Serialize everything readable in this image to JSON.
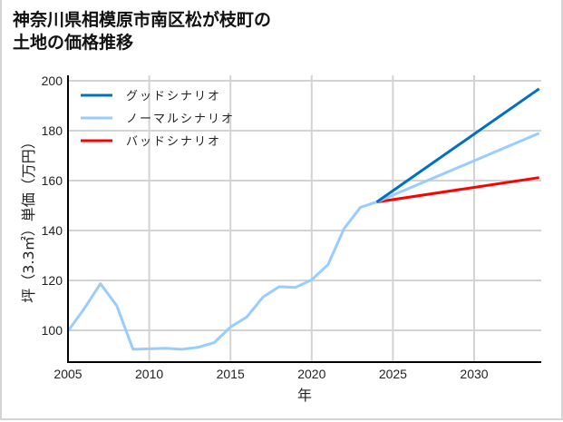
{
  "title_line1": "神奈川県相模原市南区松が枝町の",
  "title_line2": "土地の価格推移",
  "chart_data": {
    "type": "line",
    "title": "神奈川県相模原市南区松が枝町の土地の価格推移",
    "xlabel": "年",
    "ylabel": "坪（3.3㎡）単価（万円）",
    "xlim": [
      2005,
      2034
    ],
    "ylim": [
      87,
      202
    ],
    "xticks": [
      2005,
      2010,
      2015,
      2020,
      2025,
      2030
    ],
    "yticks": [
      100,
      120,
      140,
      160,
      180,
      200
    ],
    "grid": true,
    "legend_position": "upper left",
    "series": [
      {
        "name": "ノーマルシナリオ (実績)",
        "color": "#99ccff",
        "x": [
          2005,
          2006,
          2007,
          2008,
          2009,
          2010,
          2011,
          2012,
          2013,
          2014,
          2015,
          2016,
          2017,
          2018,
          2019,
          2020,
          2021,
          2022,
          2023,
          2024
        ],
        "values": [
          99.7,
          108.7,
          118.7,
          109.9,
          92.4,
          92.6,
          92.8,
          92.4,
          93.2,
          95.1,
          101.3,
          105.3,
          113.3,
          117.5,
          117.2,
          120.2,
          126.3,
          140.8,
          149.3,
          151.4
        ]
      },
      {
        "name": "グッドシナリオ",
        "color": "#0070c0",
        "x": [
          2024,
          2034
        ],
        "values": [
          151.4,
          196.8
        ]
      },
      {
        "name": "ノーマルシナリオ",
        "color": "#99ccff",
        "x": [
          2024,
          2034
        ],
        "values": [
          151.4,
          179.0
        ]
      },
      {
        "name": "バッドシナリオ",
        "color": "#ff0000",
        "x": [
          2024,
          2034
        ],
        "values": [
          151.4,
          161.2
        ]
      }
    ],
    "legend": [
      {
        "label": "グッドシナリオ",
        "color": "#0070c0"
      },
      {
        "label": "ノーマルシナリオ",
        "color": "#99ccff"
      },
      {
        "label": "バッドシナリオ",
        "color": "#ff0000"
      }
    ]
  }
}
